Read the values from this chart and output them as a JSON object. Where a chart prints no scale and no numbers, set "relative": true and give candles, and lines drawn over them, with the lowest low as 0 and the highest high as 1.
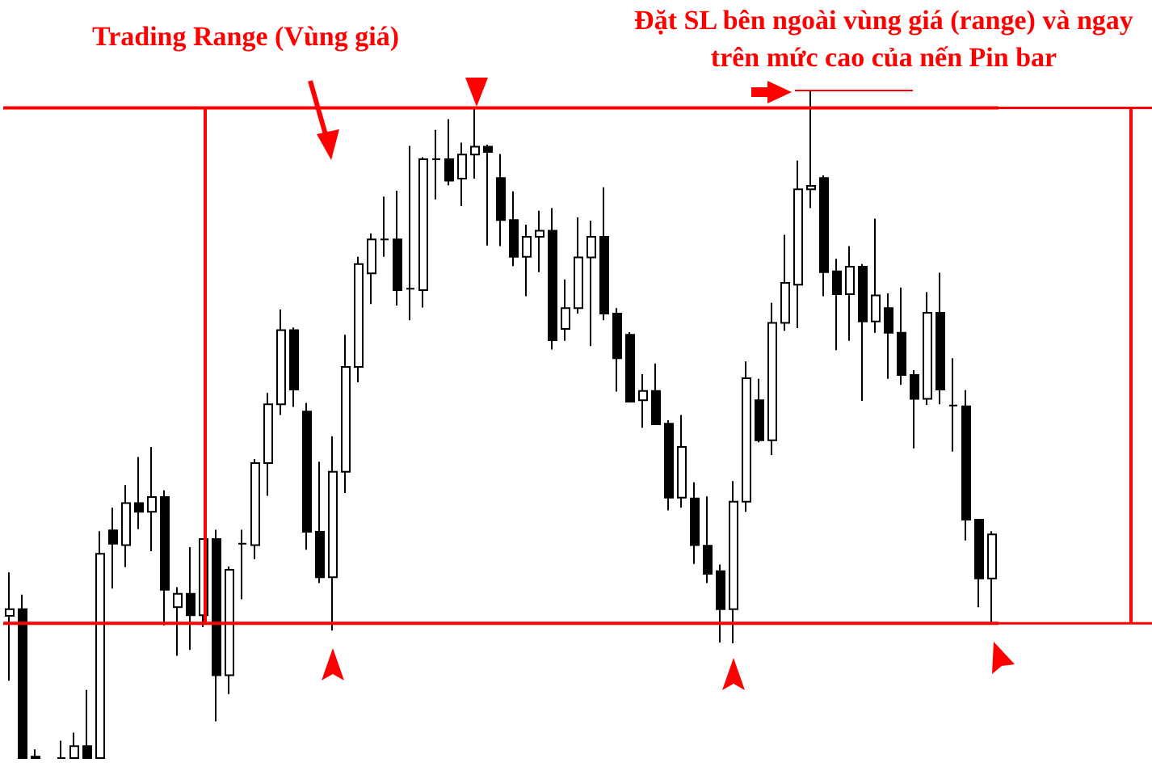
{
  "chart_data": {
    "type": "candlestick",
    "relative": true,
    "annotations": [
      "Trading Range (Vùng giá)",
      "Đặt SL bên ngoài vùng giá (range) và ngay trên mức cao của nến Pin bar"
    ],
    "categories": [
      null,
      null,
      null,
      null,
      null,
      null,
      null,
      null,
      null,
      null,
      null,
      null,
      null,
      null,
      null,
      null,
      null,
      null,
      null,
      null,
      null,
      null,
      null,
      null,
      null,
      null,
      null,
      null,
      null,
      null,
      null,
      null,
      null,
      null,
      null,
      null,
      null,
      null,
      null,
      null,
      null,
      null,
      null,
      null,
      null,
      null,
      null,
      null,
      null,
      null,
      null,
      null,
      null,
      null,
      null,
      null,
      null,
      null,
      null,
      null,
      null,
      null,
      null,
      null,
      null,
      null,
      null,
      null,
      null,
      null,
      null,
      null,
      null,
      null,
      null,
      null,
      null
    ],
    "ohlc": [
      [
        0.213,
        0.278,
        0.116,
        0.223
      ],
      [
        0.223,
        0.245,
        0,
        0
      ],
      [
        0.002,
        0.013,
        0,
        0
      ],
      null,
      [
        0,
        0.026,
        0,
        0
      ],
      [
        0,
        0.038,
        0,
        0.018
      ],
      [
        0.018,
        0.102,
        0,
        0
      ],
      [
        0,
        0.34,
        0,
        0.306
      ],
      [
        0.341,
        0.375,
        0.254,
        0.321
      ],
      [
        0.319,
        0.409,
        0.286,
        0.382
      ],
      [
        0.382,
        0.451,
        0.343,
        0.369
      ],
      [
        0.369,
        0.466,
        0.31,
        0.391
      ],
      [
        0.391,
        0.401,
        0.199,
        0.252
      ],
      [
        0.226,
        0.256,
        0.153,
        0.246
      ],
      [
        0.246,
        0.316,
        0.162,
        0.214
      ],
      [
        0.214,
        0.328,
        0.196,
        0.328
      ],
      [
        0.328,
        0.342,
        0.055,
        0.124
      ],
      [
        0.124,
        0.287,
        0.096,
        0.282
      ],
      [
        0.321,
        0.342,
        0.238,
        0.321
      ],
      [
        0.319,
        0.448,
        0.298,
        0.442
      ],
      [
        0.442,
        0.547,
        0.393,
        0.53
      ],
      [
        0.53,
        0.672,
        0.514,
        0.641
      ],
      [
        0.641,
        0.645,
        0.526,
        0.552
      ],
      [
        0.519,
        0.532,
        0.312,
        0.339
      ],
      [
        0.339,
        0.444,
        0.262,
        0.271
      ],
      [
        0.271,
        0.482,
        0.191,
        0.429
      ],
      [
        0.429,
        0.634,
        0.397,
        0.586
      ],
      [
        0.586,
        0.751,
        0.563,
        0.74
      ],
      [
        0.726,
        0.786,
        0.68,
        0.777
      ],
      [
        0.777,
        0.841,
        0.751,
        0.777
      ],
      [
        0.777,
        0.85,
        0.678,
        0.701
      ],
      [
        0.703,
        0.917,
        0.656,
        0.703
      ],
      [
        0.701,
        0.9,
        0.675,
        0.897
      ],
      [
        0.897,
        0.941,
        0.837,
        0.897
      ],
      [
        0.897,
        0.957,
        0.858,
        0.865
      ],
      [
        0.868,
        0.922,
        0.827,
        0.904
      ],
      [
        0.904,
        0.973,
        0.868,
        0.916
      ],
      [
        0.916,
        0.919,
        0.768,
        0.908
      ],
      [
        0.869,
        0.905,
        0.767,
        0.806
      ],
      [
        0.806,
        0.849,
        0.737,
        0.751
      ],
      [
        0.751,
        0.799,
        0.692,
        0.781
      ],
      [
        0.781,
        0.82,
        0.728,
        0.79
      ],
      [
        0.79,
        0.824,
        0.612,
        0.626
      ],
      [
        0.643,
        0.717,
        0.625,
        0.674
      ],
      [
        0.674,
        0.81,
        0.666,
        0.75
      ],
      [
        0.75,
        0.805,
        0.617,
        0.781
      ],
      [
        0.781,
        0.855,
        0.656,
        0.666
      ],
      [
        0.666,
        0.674,
        0.549,
        0.599
      ],
      [
        0.634,
        0.638,
        0.533,
        0.534
      ],
      [
        0.536,
        0.575,
        0.495,
        0.55
      ],
      [
        0.55,
        0.591,
        0.5,
        0.5
      ],
      [
        0.501,
        0.506,
        0.371,
        0.39
      ],
      [
        0.39,
        0.514,
        0.375,
        0.466
      ],
      [
        0.389,
        0.413,
        0.291,
        0.319
      ],
      [
        0.318,
        0.392,
        0.262,
        0.276
      ],
      [
        0.28,
        0.29,
        0.173,
        0.223
      ],
      [
        0.223,
        0.415,
        0.172,
        0.384
      ],
      [
        0.384,
        0.594,
        0.369,
        0.569
      ],
      [
        0.536,
        0.568,
        0.473,
        0.476
      ],
      [
        0.476,
        0.682,
        0.454,
        0.652
      ],
      [
        0.652,
        0.784,
        0.64,
        0.712
      ],
      [
        0.709,
        0.895,
        0.644,
        0.852
      ],
      [
        0.852,
        1,
        0.824,
        0.857
      ],
      [
        0.869,
        0.873,
        0.692,
        0.728
      ],
      [
        0.729,
        0.748,
        0.611,
        0.695
      ],
      [
        0.695,
        0.767,
        0.625,
        0.736
      ],
      [
        0.736,
        0.74,
        0.535,
        0.654
      ],
      [
        0.654,
        0.808,
        0.637,
        0.693
      ],
      [
        0.674,
        0.696,
        0.568,
        0.637
      ],
      [
        0.637,
        0.705,
        0.559,
        0.574
      ],
      [
        0.574,
        0.581,
        0.464,
        0.538
      ],
      [
        0.538,
        0.698,
        0.529,
        0.667
      ],
      [
        0.667,
        0.727,
        0.53,
        0.552
      ],
      [
        0.528,
        0.599,
        0.459,
        0.528
      ],
      [
        0.527,
        0.551,
        0.326,
        0.357
      ],
      [
        0.357,
        0.357,
        0.226,
        0.269
      ],
      [
        0.269,
        0.34,
        0.203,
        0.335
      ]
    ],
    "ref_lines": [
      {
        "axis": "y",
        "value": 0.974,
        "color": "#ff0000"
      },
      {
        "axis": "y",
        "value": 0.202,
        "color": "#ff0000"
      }
    ]
  }
}
